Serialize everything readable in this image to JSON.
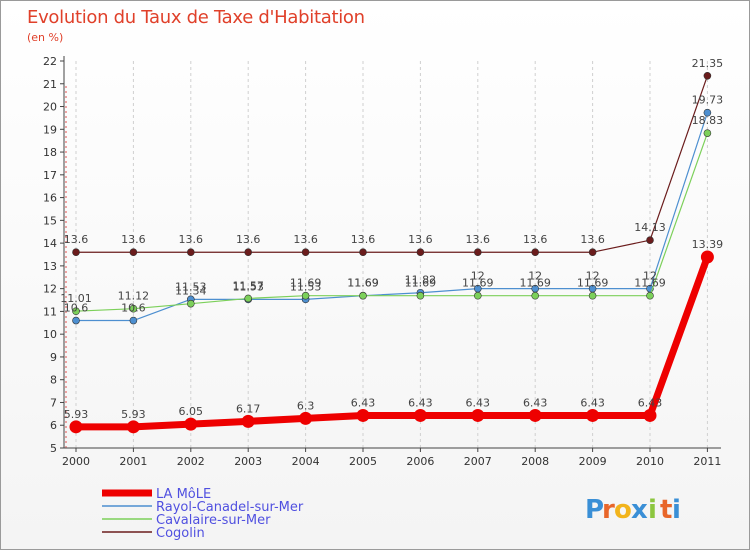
{
  "title": "Evolution du Taux de Taxe d'Habitation",
  "subtitle": "(en %)",
  "brand": {
    "letters": [
      "P",
      "r",
      "o",
      "x",
      "i",
      "t",
      "i"
    ],
    "colors": [
      "#3a8fd6",
      "#e8662a",
      "#f2b41c",
      "#3a8fd6",
      "#8cc63f",
      "#e8662a",
      "#3a8fd6"
    ]
  },
  "chart_data": {
    "type": "line",
    "x": [
      "2000",
      "2001",
      "2002",
      "2003",
      "2004",
      "2005",
      "2006",
      "2007",
      "2008",
      "2009",
      "2010",
      "2011"
    ],
    "yticks": [
      "5",
      "6",
      "7",
      "8",
      "9",
      "10",
      "11",
      "12",
      "13",
      "14",
      "15",
      "16",
      "17",
      "18",
      "19",
      "20",
      "21",
      "22"
    ],
    "ylim": [
      5,
      22
    ],
    "grid": "vertical dashed",
    "legend": "bottom-left",
    "series": [
      {
        "name": "Cogolin",
        "color": "#6b1c1c",
        "values": [
          13.6,
          13.6,
          13.6,
          13.6,
          13.6,
          13.6,
          13.6,
          13.6,
          13.6,
          13.6,
          14.13,
          21.35
        ],
        "labels": [
          "13.6",
          "13.6",
          "13.6",
          "13.6",
          "13.6",
          "13.6",
          "13.6",
          "13.6",
          "13.6",
          "13.6",
          "14.13",
          "21.35"
        ]
      },
      {
        "name": "Rayol-Canadel-sur-Mer",
        "color": "#4d8fd0",
        "values": [
          10.6,
          10.6,
          11.53,
          11.53,
          11.53,
          11.69,
          11.82,
          12,
          12,
          12,
          12,
          19.73
        ],
        "labels": [
          "10.6",
          "10.6",
          "11.53",
          "11.53",
          "11.53",
          "11.69",
          "11.82",
          "12",
          "12",
          "12",
          "12",
          "19.73"
        ]
      },
      {
        "name": "Cavalaire-sur-Mer",
        "color": "#7cd05a",
        "values": [
          11.01,
          11.12,
          11.34,
          11.57,
          11.69,
          11.69,
          11.69,
          11.69,
          11.69,
          11.69,
          11.69,
          18.83
        ],
        "labels": [
          "11.01",
          "11.12",
          "11.34",
          "11.57",
          "11.69",
          "11.69",
          "11.69",
          "11.69",
          "11.69",
          "11.69",
          "11.69",
          "18.83"
        ]
      },
      {
        "name": "LA MôLE",
        "color": "#ee0000",
        "values": [
          5.93,
          5.93,
          6.05,
          6.17,
          6.3,
          6.43,
          6.43,
          6.43,
          6.43,
          6.43,
          6.43,
          13.39
        ],
        "labels": [
          "5.93",
          "5.93",
          "6.05",
          "6.17",
          "6.3",
          "6.43",
          "6.43",
          "6.43",
          "6.43",
          "6.43",
          "6.43",
          "13.39"
        ]
      }
    ],
    "legend_order": [
      "LA MôLE",
      "Rayol-Canadel-sur-Mer",
      "Cavalaire-sur-Mer",
      "Cogolin"
    ]
  }
}
